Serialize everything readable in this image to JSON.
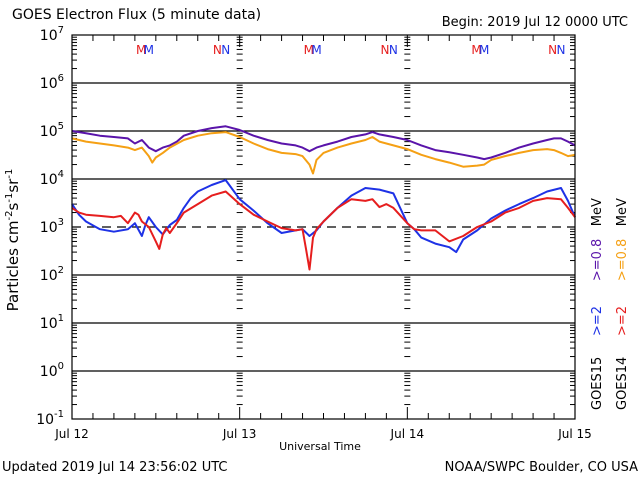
{
  "header": {
    "title": "GOES Electron Flux (5 minute data)",
    "begin": "Begin: 2019 Jul 12 0000 UTC"
  },
  "footer": {
    "updated": "Updated 2019 Jul 14 23:56:02 UTC",
    "credit": "NOAA/SWPC Boulder, CO USA"
  },
  "colors": {
    "goes15_ge2": "#1e32e6",
    "goes14_ge2": "#e61e1e",
    "goes15_ge08": "#5a14aa",
    "goes14_ge08": "#f5a014",
    "axis": "#000000"
  },
  "legend": {
    "goes15": {
      "sat": "GOES15",
      "ge2": ">=2",
      "ge08": ">=0.8",
      "unit": "MeV"
    },
    "goes14": {
      "sat": "GOES14",
      "ge2": ">=2",
      "ge08": ">=0.8",
      "unit": "MeV"
    }
  },
  "chart_data": {
    "type": "line",
    "title": "GOES Electron Flux (5 minute data)",
    "xlabel": "Universal Time",
    "ylabel": "Particles cm^-2 s^-1 sr^-1",
    "yscale": "log",
    "ylim": [
      0.1,
      10000000
    ],
    "xlim_hours": [
      0,
      72
    ],
    "x_ticks": [
      {
        "hour": 0,
        "label": "Jul 12"
      },
      {
        "hour": 24,
        "label": "Jul 13"
      },
      {
        "hour": 48,
        "label": "Jul 14"
      },
      {
        "hour": 72,
        "label": "Jul 15"
      }
    ],
    "y_ticks": [
      {
        "value": 10000000,
        "base": "10",
        "exp": "7"
      },
      {
        "value": 1000000,
        "base": "10",
        "exp": "6"
      },
      {
        "value": 100000,
        "base": "10",
        "exp": "5"
      },
      {
        "value": 10000,
        "base": "10",
        "exp": "4"
      },
      {
        "value": 1000,
        "base": "10",
        "exp": "3"
      },
      {
        "value": 100,
        "base": "10",
        "exp": "2"
      },
      {
        "value": 10,
        "base": "10",
        "exp": "1"
      },
      {
        "value": 1,
        "base": "10",
        "exp": "0"
      },
      {
        "value": 0.1,
        "base": "10",
        "exp": "-1"
      }
    ],
    "gridlines_decades": [
      1000000,
      100000,
      10000,
      100,
      10,
      1
    ],
    "threshold_line": {
      "value": 1000,
      "style": "dashed"
    },
    "markers": [
      {
        "hour": 9.9,
        "label": "M",
        "satellite": "GOES14"
      },
      {
        "hour": 11.0,
        "label": "M",
        "satellite": "GOES15"
      },
      {
        "hour": 20.8,
        "label": "N",
        "satellite": "GOES14"
      },
      {
        "hour": 22.0,
        "label": "N",
        "satellite": "GOES15"
      },
      {
        "hour": 33.9,
        "label": "M",
        "satellite": "GOES14"
      },
      {
        "hour": 35.0,
        "label": "M",
        "satellite": "GOES15"
      },
      {
        "hour": 44.8,
        "label": "N",
        "satellite": "GOES14"
      },
      {
        "hour": 46.0,
        "label": "N",
        "satellite": "GOES15"
      },
      {
        "hour": 57.9,
        "label": "M",
        "satellite": "GOES14"
      },
      {
        "hour": 59.0,
        "label": "M",
        "satellite": "GOES15"
      },
      {
        "hour": 68.8,
        "label": "N",
        "satellite": "GOES14"
      },
      {
        "hour": 70.0,
        "label": "N",
        "satellite": "GOES15"
      }
    ],
    "series": [
      {
        "name": "GOES15 >=0.8 MeV",
        "color_key": "goes15_ge08",
        "hours": [
          0,
          2,
          4,
          6,
          8,
          9,
          10,
          11,
          12,
          13,
          14,
          15,
          16,
          18,
          20,
          22,
          24,
          26,
          28,
          30,
          32,
          33,
          34,
          35,
          36,
          38,
          40,
          42,
          43,
          44,
          46,
          48,
          50,
          52,
          54,
          56,
          58,
          59,
          60,
          62,
          64,
          66,
          68,
          69,
          70,
          71,
          72
        ],
        "values": [
          100000.0,
          90000.0,
          80000.0,
          75000.0,
          70000.0,
          55000.0,
          65000.0,
          45000.0,
          38000.0,
          45000.0,
          50000.0,
          60000.0,
          80000.0,
          100000.0,
          115000.0,
          125000.0,
          105000.0,
          80000.0,
          65000.0,
          55000.0,
          50000.0,
          45000.0,
          38000.0,
          45000.0,
          50000.0,
          60000.0,
          75000.0,
          85000.0,
          95000.0,
          85000.0,
          75000.0,
          65000.0,
          50000.0,
          40000.0,
          36000.0,
          32000.0,
          28000.0,
          26000.0,
          28000.0,
          35000.0,
          45000.0,
          55000.0,
          65000.0,
          70000.0,
          70000.0,
          60000.0,
          50000.0
        ]
      },
      {
        "name": "GOES14 >=0.8 MeV",
        "color_key": "goes14_ge08",
        "hours": [
          0,
          2,
          4,
          6,
          8,
          9,
          10,
          11,
          11.5,
          12,
          13,
          14,
          16,
          18,
          20,
          22,
          24,
          26,
          28,
          30,
          32,
          33,
          34,
          34.5,
          35,
          36,
          38,
          40,
          42,
          43,
          44,
          46,
          48,
          50,
          52,
          54,
          56,
          58,
          59,
          60,
          62,
          64,
          66,
          68,
          69,
          70,
          71,
          72
        ],
        "values": [
          70000.0,
          60000.0,
          55000.0,
          50000.0,
          45000.0,
          40000.0,
          45000.0,
          30000.0,
          22000.0,
          28000.0,
          35000.0,
          45000.0,
          65000.0,
          80000.0,
          90000.0,
          95000.0,
          75000.0,
          55000.0,
          42000.0,
          35000.0,
          33000.0,
          30000.0,
          20000.0,
          13000.0,
          25000.0,
          35000.0,
          45000.0,
          55000.0,
          65000.0,
          75000.0,
          60000.0,
          50000.0,
          42000.0,
          32000.0,
          26000.0,
          22000.0,
          18000.0,
          19000.0,
          20000.0,
          25000.0,
          30000.0,
          35000.0,
          40000.0,
          42000.0,
          40000.0,
          35000.0,
          30000.0,
          32000.0
        ]
      },
      {
        "name": "GOES15 >=2 MeV",
        "color_key": "goes15_ge2",
        "hours": [
          0,
          1,
          2,
          4,
          6,
          8,
          9,
          10,
          10.5,
          11,
          12,
          13,
          14,
          15,
          16,
          17,
          18,
          20,
          22,
          24,
          26,
          28,
          30,
          32,
          33,
          34,
          35,
          36,
          38,
          40,
          42,
          44,
          45,
          46,
          48,
          49,
          50,
          52,
          54,
          55,
          56,
          58,
          60,
          62,
          64,
          66,
          68,
          70,
          71,
          72
        ],
        "values": [
          3000.0,
          1800.0,
          1300.0,
          900.0,
          800.0,
          900.0,
          1200.0,
          650.0,
          1100.0,
          1600.0,
          1000.0,
          700.0,
          1100.0,
          1400.0,
          2500.0,
          4000.0,
          5500.0,
          7500.0,
          9500.0,
          3800.0,
          2200.0,
          1200.0,
          750.0,
          850.0,
          900.0,
          650.0,
          850.0,
          1300.0,
          2500.0,
          4500.0,
          6500.0,
          6000.0,
          5500.0,
          5000.0,
          1200.0,
          900.0,
          600.0,
          450.0,
          380.0,
          300.0,
          550.0,
          850.0,
          1500.0,
          2200.0,
          3000.0,
          4000.0,
          5500.0,
          6500.0,
          3500.0,
          1600.0
        ]
      },
      {
        "name": "GOES14 >=2 MeV",
        "color_key": "goes14_ge2",
        "hours": [
          0,
          1,
          2,
          4,
          6,
          7,
          8,
          9,
          9.5,
          10,
          11,
          12,
          12.5,
          13,
          13.5,
          14,
          15,
          16,
          18,
          20,
          22,
          24,
          26,
          28,
          30,
          32,
          33,
          33.5,
          34,
          34.5,
          35,
          36,
          38,
          40,
          42,
          43,
          44,
          45,
          46,
          48,
          49,
          50,
          52,
          54,
          56,
          58,
          60,
          62,
          64,
          66,
          68,
          70,
          71,
          72
        ],
        "values": [
          2500.0,
          2000.0,
          1800.0,
          1700.0,
          1600.0,
          1700.0,
          1200.0,
          2000.0,
          1800.0,
          1300.0,
          1000.0,
          500.0,
          350.0,
          700.0,
          950.0,
          750.0,
          1200.0,
          2000.0,
          3000.0,
          4500.0,
          5500.0,
          3000.0,
          1800.0,
          1300.0,
          950.0,
          850.0,
          900.0,
          350.0,
          130.0,
          600.0,
          900.0,
          1300.0,
          2500.0,
          3800.0,
          3500.0,
          3800.0,
          2600.0,
          3000.0,
          2500.0,
          1200.0,
          900.0,
          850.0,
          850.0,
          500.0,
          650.0,
          1000.0,
          1300.0,
          2000.0,
          2500.0,
          3500.0,
          4000.0,
          3800.0,
          2500.0,
          1600.0
        ]
      }
    ]
  }
}
